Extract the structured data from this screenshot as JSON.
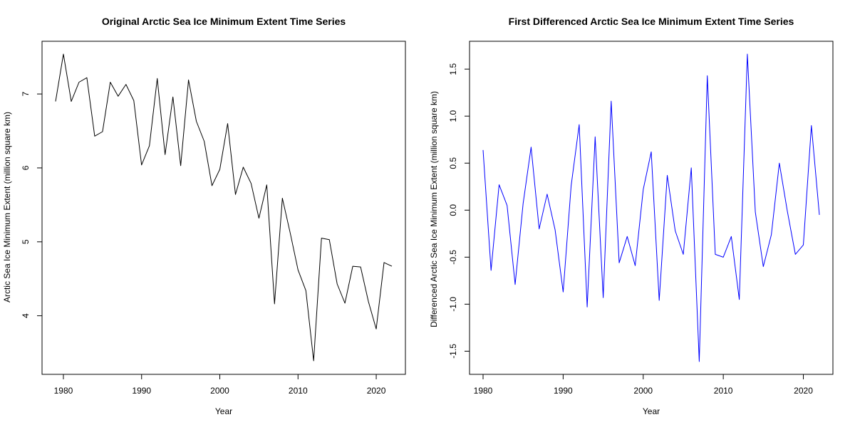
{
  "chart_data": [
    {
      "type": "line",
      "title": "Original Arctic Sea Ice Minimum Extent Time Series",
      "xlabel": "Year",
      "ylabel": "Arctic Sea Ice Minimum Extent (million square km)",
      "xlim": [
        1979,
        2022
      ],
      "ylim": [
        3.39,
        7.54
      ],
      "x_ticks": [
        1980,
        1990,
        2000,
        2010,
        2020
      ],
      "y_ticks": [
        4,
        5,
        6,
        7
      ],
      "grid": false,
      "color": "#000000",
      "x": [
        1979,
        1980,
        1981,
        1982,
        1983,
        1984,
        1985,
        1986,
        1987,
        1988,
        1989,
        1990,
        1991,
        1992,
        1993,
        1994,
        1995,
        1996,
        1997,
        1998,
        1999,
        2000,
        2001,
        2002,
        2003,
        2004,
        2005,
        2006,
        2007,
        2008,
        2009,
        2010,
        2011,
        2012,
        2013,
        2014,
        2015,
        2016,
        2017,
        2018,
        2019,
        2020,
        2021,
        2022
      ],
      "y": [
        6.9,
        7.54,
        6.9,
        7.16,
        7.22,
        6.43,
        6.49,
        7.16,
        6.97,
        7.13,
        6.91,
        6.04,
        6.3,
        7.21,
        6.18,
        6.96,
        6.03,
        7.19,
        6.63,
        6.36,
        5.76,
        5.98,
        6.6,
        5.64,
        6.01,
        5.79,
        5.32,
        5.77,
        4.16,
        5.59,
        5.12,
        4.62,
        4.34,
        3.39,
        5.05,
        5.03,
        4.43,
        4.17,
        4.67,
        4.66,
        4.19,
        3.82,
        4.72,
        4.67
      ]
    },
    {
      "type": "line",
      "title": "First Differenced Arctic Sea Ice Minimum Extent Time Series",
      "xlabel": "Year",
      "ylabel": "Differenced Arctic Sea Ice Minimum Extent (million square km)",
      "xlim": [
        1980,
        2022
      ],
      "ylim": [
        -1.61,
        1.66
      ],
      "x_ticks": [
        1980,
        1990,
        2000,
        2010,
        2020
      ],
      "y_ticks": [
        -1.5,
        -1.0,
        -0.5,
        0.0,
        0.5,
        1.0,
        1.5
      ],
      "y_tick_labels": [
        "-1.5",
        "-1.0",
        "-0.5",
        "0.0",
        "0.5",
        "1.0",
        "1.5"
      ],
      "grid": false,
      "color": "#0000ff",
      "x": [
        1980,
        1981,
        1982,
        1983,
        1984,
        1985,
        1986,
        1987,
        1988,
        1989,
        1990,
        1991,
        1992,
        1993,
        1994,
        1995,
        1996,
        1997,
        1998,
        1999,
        2000,
        2001,
        2002,
        2003,
        2004,
        2005,
        2006,
        2007,
        2008,
        2009,
        2010,
        2011,
        2012,
        2013,
        2014,
        2015,
        2016,
        2017,
        2018,
        2019,
        2020,
        2021,
        2022
      ],
      "y": [
        0.64,
        -0.64,
        0.27,
        0.05,
        -0.79,
        0.07,
        0.67,
        -0.2,
        0.17,
        -0.21,
        -0.87,
        0.26,
        0.91,
        -1.03,
        0.78,
        -0.93,
        1.16,
        -0.56,
        -0.28,
        -0.59,
        0.22,
        0.62,
        -0.96,
        0.37,
        -0.22,
        -0.47,
        0.45,
        -1.61,
        1.43,
        -0.47,
        -0.5,
        -0.28,
        -0.95,
        1.66,
        -0.02,
        -0.6,
        -0.26,
        0.5,
        -0.01,
        -0.47,
        -0.37,
        0.9,
        -0.05
      ]
    }
  ]
}
